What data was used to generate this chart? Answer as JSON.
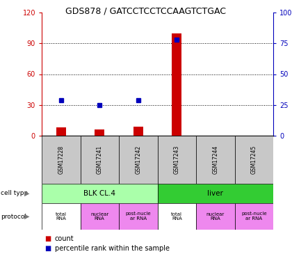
{
  "title": "GDS878 / GATCCTCCTCCAAGTCTGAC",
  "samples": [
    "GSM17228",
    "GSM17241",
    "GSM17242",
    "GSM17243",
    "GSM17244",
    "GSM17245"
  ],
  "counts": [
    8,
    6,
    9,
    100,
    0,
    0
  ],
  "percentiles": [
    29,
    25,
    29,
    78,
    0,
    0
  ],
  "ylim_left": [
    0,
    120
  ],
  "ylim_right": [
    0,
    100
  ],
  "yticks_left": [
    0,
    30,
    60,
    90,
    120
  ],
  "yticks_right": [
    0,
    25,
    50,
    75,
    100
  ],
  "ytick_labels_right": [
    "0",
    "25",
    "50",
    "75",
    "100%"
  ],
  "cell_types": [
    {
      "label": "BLK CL.4",
      "start": 0,
      "end": 3,
      "color": "#AAFFAA"
    },
    {
      "label": "liver",
      "start": 3,
      "end": 6,
      "color": "#33CC33"
    }
  ],
  "protocols": [
    {
      "label": "total\nRNA",
      "color": "#FFFFFF"
    },
    {
      "label": "nuclear\nRNA",
      "color": "#EE88EE"
    },
    {
      "label": "post-nucle\nar RNA",
      "color": "#EE88EE"
    },
    {
      "label": "total\nRNA",
      "color": "#FFFFFF"
    },
    {
      "label": "nuclear\nRNA",
      "color": "#EE88EE"
    },
    {
      "label": "post-nucle\nar RNA",
      "color": "#EE88EE"
    }
  ],
  "bar_color": "#CC0000",
  "dot_color": "#0000BB",
  "left_axis_color": "#CC0000",
  "right_axis_color": "#0000BB",
  "bg_color": "#FFFFFF",
  "sample_bg_color": "#C8C8C8",
  "grid_color": "#000000"
}
